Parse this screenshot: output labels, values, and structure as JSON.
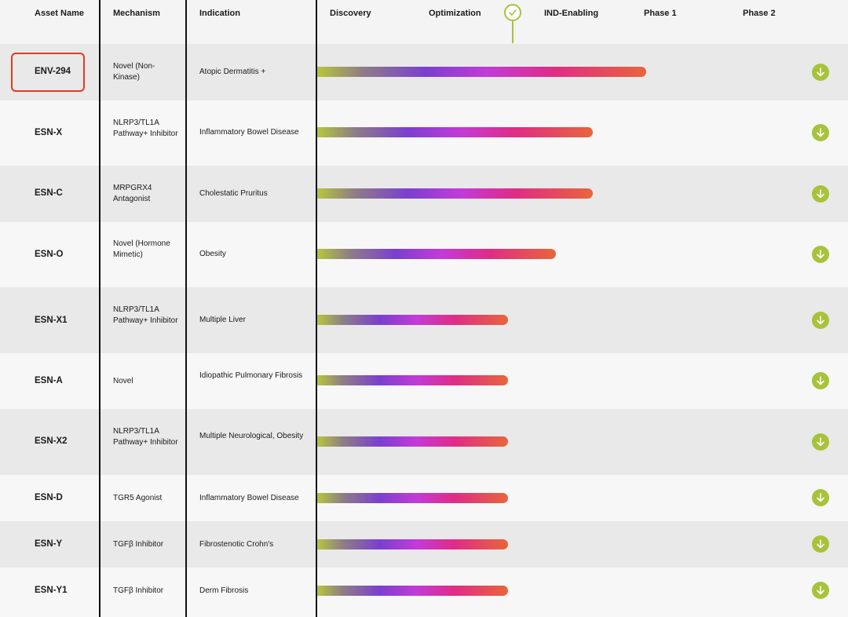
{
  "header": {
    "asset_name": "Asset Name",
    "mechanism": "Mechanism",
    "indication": "Indication",
    "stages": [
      "Discovery",
      "Optimization",
      "IND-Enabling",
      "Phase 1",
      "Phase 2"
    ]
  },
  "colors": {
    "accent_green": "#a6c33a",
    "highlight_red": "#e53a22",
    "bar_gradient": [
      "#b7c83a",
      "#7b3fd0",
      "#c23bd8",
      "#e02c86",
      "#e8653a"
    ]
  },
  "current_stage_marker": "check-icon",
  "rows": [
    {
      "asset": "ENV-294",
      "mechanism": "Novel (Non-Kinase)",
      "indication": "Atopic Dermatitis +",
      "progress_pct": 62,
      "highlighted": true
    },
    {
      "asset": "ESN-X",
      "mechanism": "NLRP3/TL1A Pathway+ Inhibitor",
      "indication": "Inflammatory Bowel Disease",
      "progress_pct": 52
    },
    {
      "asset": "ESN-C",
      "mechanism": "MRPGRX4 Antagonist",
      "indication": "Cholestatic Pruritus",
      "progress_pct": 52
    },
    {
      "asset": "ESN-O",
      "mechanism": "Novel (Hormone Mimetic)",
      "indication": "Obesity",
      "progress_pct": 45
    },
    {
      "asset": "ESN-X1",
      "mechanism": "NLRP3/TL1A Pathway+ Inhibitor",
      "indication": "Multiple Liver",
      "progress_pct": 36
    },
    {
      "asset": "ESN-A",
      "mechanism": "Novel",
      "indication": "Idiopathic Pulmonary Fibrosis",
      "progress_pct": 36
    },
    {
      "asset": "ESN-X2",
      "mechanism": "NLRP3/TL1A Pathway+ Inhibitor",
      "indication": "Multiple Neurological, Obesity",
      "progress_pct": 36
    },
    {
      "asset": "ESN-D",
      "mechanism": "TGR5 Agonist",
      "indication": "Inflammatory Bowel Disease",
      "progress_pct": 36
    },
    {
      "asset": "ESN-Y",
      "mechanism": "TGFβ Inhibitor",
      "indication": "Fibrostenotic Crohn's",
      "progress_pct": 36
    },
    {
      "asset": "ESN-Y1",
      "mechanism": "TGFβ Inhibitor",
      "indication": "Derm Fibrosis",
      "progress_pct": 36
    }
  ]
}
